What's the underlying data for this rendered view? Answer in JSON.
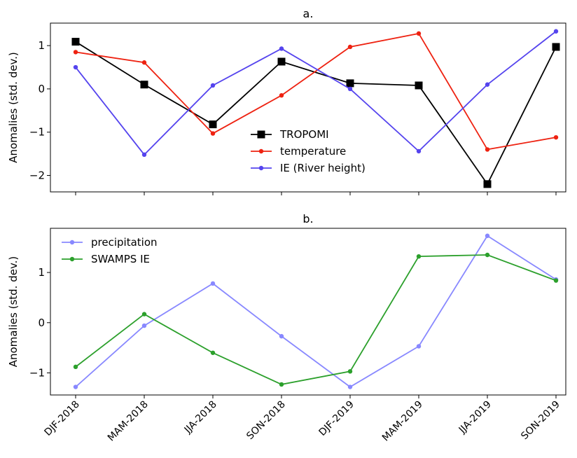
{
  "chart_data": [
    {
      "type": "line",
      "title": "a.",
      "ylabel": "Anomalies (std. dev.)",
      "categories": [
        "DJF-2018",
        "MAM-2018",
        "JJA-2018",
        "SON-2018",
        "DJF-2019",
        "MAM-2019",
        "JJA-2019",
        "SON-2019"
      ],
      "ylim": [
        -2.38,
        1.52
      ],
      "yticks": [
        -2,
        -1,
        0,
        1
      ],
      "ytick_labels": [
        "−2",
        "−1",
        "0",
        "1"
      ],
      "legend_position": "lower-center",
      "series": [
        {
          "name": "TROPOMI",
          "color": "#000000",
          "marker": "square",
          "values": [
            1.09,
            0.1,
            -0.82,
            0.63,
            0.13,
            0.08,
            -2.2,
            0.97
          ]
        },
        {
          "name": "temperature",
          "color": "#ee2211",
          "marker": "circle",
          "values": [
            0.85,
            0.61,
            -1.03,
            -0.15,
            0.97,
            1.28,
            -1.4,
            -1.12
          ]
        },
        {
          "name": "IE (River height)",
          "color": "#5544ee",
          "marker": "circle",
          "values": [
            0.5,
            -1.52,
            0.08,
            0.93,
            0.0,
            -1.44,
            0.1,
            1.33
          ]
        }
      ]
    },
    {
      "type": "line",
      "title": "b.",
      "ylabel": "Anomalies (std. dev.)",
      "categories": [
        "DJF-2018",
        "MAM-2018",
        "JJA-2018",
        "SON-2018",
        "DJF-2019",
        "MAM-2019",
        "JJA-2019",
        "SON-2019"
      ],
      "ylim": [
        -1.44,
        1.88
      ],
      "yticks": [
        -1,
        0,
        1
      ],
      "ytick_labels": [
        "−1",
        "0",
        "1"
      ],
      "legend_position": "upper-left",
      "series": [
        {
          "name": "precipitation",
          "color": "#8888ff",
          "marker": "circle",
          "values": [
            -1.28,
            -0.06,
            0.78,
            -0.27,
            -1.28,
            -0.47,
            1.73,
            0.86
          ]
        },
        {
          "name": "SWAMPS IE",
          "color": "#2ca02c",
          "marker": "circle",
          "values": [
            -0.88,
            0.17,
            -0.6,
            -1.23,
            -0.97,
            1.32,
            1.35,
            0.84
          ]
        }
      ]
    }
  ]
}
